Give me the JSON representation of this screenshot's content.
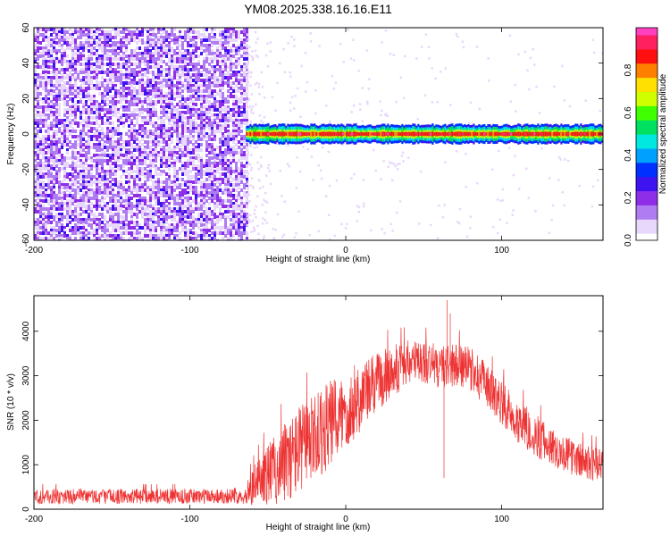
{
  "title": "YM08.2025.338.16.16.E11",
  "chart_data": [
    {
      "type": "heatmap",
      "xlabel": "Height of straight line (km)",
      "ylabel": "Frequency (Hz)",
      "xlim": [
        -200,
        165
      ],
      "ylim": [
        -60,
        60
      ],
      "xticks": [
        -200,
        -100,
        0,
        100
      ],
      "yticks": [
        -60,
        -40,
        -20,
        0,
        20,
        40,
        60
      ],
      "colorbar": {
        "label": "Normalized spectral amplitude",
        "range": [
          0,
          1
        ],
        "ticks": [
          "0.0",
          "0.2",
          "0.4",
          "0.6",
          "0.8"
        ],
        "colors": [
          "#ffffff",
          "#e8d8fb",
          "#b07cf2",
          "#8e2ee8",
          "#3f12f0",
          "#0030ff",
          "#00a0ff",
          "#00e8e0",
          "#00e060",
          "#40ff00",
          "#d0ff00",
          "#ffe000",
          "#ff8000",
          "#ff1010",
          "#ff2060",
          "#ff40c0"
        ]
      },
      "regions": [
        {
          "x_range": [
            -200,
            -64
          ],
          "freq_range": [
            -60,
            60
          ],
          "amplitude_range": [
            0.0,
            0.15
          ],
          "description_pattern": "scattered"
        },
        {
          "x_range": [
            -64,
            165
          ],
          "freq_center": 0,
          "band_halfwidth": 3,
          "amplitude_range": [
            0.3,
            1.0
          ]
        }
      ]
    },
    {
      "type": "line",
      "xlabel": "Height of straight line (km)",
      "ylabel": "SNR (10 * v/v)",
      "xlim": [
        -200,
        165
      ],
      "ylim": [
        0,
        4800
      ],
      "xticks": [
        -200,
        -100,
        0,
        100
      ],
      "yticks": [
        0,
        1000,
        2000,
        3000,
        4000
      ],
      "color": "#ee3333",
      "envelope": [
        {
          "x": -200,
          "mean": 280,
          "spread": 180
        },
        {
          "x": -150,
          "mean": 290,
          "spread": 170
        },
        {
          "x": -100,
          "mean": 290,
          "spread": 170
        },
        {
          "x": -65,
          "mean": 300,
          "spread": 180
        },
        {
          "x": -60,
          "mean": 500,
          "spread": 400
        },
        {
          "x": -50,
          "mean": 800,
          "spread": 700
        },
        {
          "x": -40,
          "mean": 1000,
          "spread": 900
        },
        {
          "x": -30,
          "mean": 1350,
          "spread": 1000
        },
        {
          "x": -20,
          "mean": 1600,
          "spread": 1000
        },
        {
          "x": -10,
          "mean": 1900,
          "spread": 1000
        },
        {
          "x": 0,
          "mean": 2200,
          "spread": 900
        },
        {
          "x": 10,
          "mean": 2550,
          "spread": 800
        },
        {
          "x": 20,
          "mean": 2850,
          "spread": 700
        },
        {
          "x": 30,
          "mean": 3100,
          "spread": 600
        },
        {
          "x": 40,
          "mean": 3300,
          "spread": 500
        },
        {
          "x": 50,
          "mean": 3300,
          "spread": 500
        },
        {
          "x": 60,
          "mean": 3200,
          "spread": 500
        },
        {
          "x": 70,
          "mean": 3250,
          "spread": 500
        },
        {
          "x": 80,
          "mean": 3150,
          "spread": 500
        },
        {
          "x": 90,
          "mean": 2800,
          "spread": 500
        },
        {
          "x": 100,
          "mean": 2400,
          "spread": 500
        },
        {
          "x": 110,
          "mean": 2000,
          "spread": 500
        },
        {
          "x": 120,
          "mean": 1700,
          "spread": 500
        },
        {
          "x": 130,
          "mean": 1450,
          "spread": 450
        },
        {
          "x": 140,
          "mean": 1250,
          "spread": 400
        },
        {
          "x": 150,
          "mean": 1100,
          "spread": 400
        },
        {
          "x": 165,
          "mean": 950,
          "spread": 400
        }
      ],
      "spikes": [
        {
          "x": 63,
          "value": 700
        },
        {
          "x": 65,
          "value": 4700
        },
        {
          "x": 67,
          "value": 4400
        }
      ]
    }
  ]
}
